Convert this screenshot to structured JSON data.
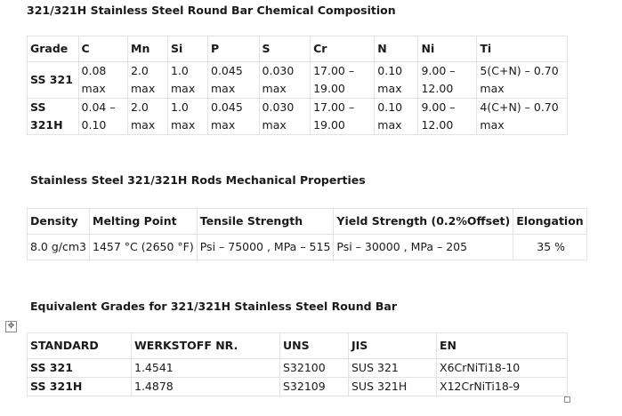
{
  "chemical": {
    "title": "321/321H Stainless Steel Round Bar Chemical Composition",
    "headers": [
      "Grade",
      "C",
      "Mn",
      "Si",
      "P",
      "S",
      "Cr",
      "N",
      "Ni",
      "Ti"
    ],
    "rows": [
      [
        "SS 321",
        "0.08 max",
        "2.0 max",
        "1.0 max",
        "0.045 max",
        "0.030 max",
        "17.00 – 19.00",
        "0.10 max",
        "9.00 – 12.00",
        "5(C+N) – 0.70 max"
      ],
      [
        "SS 321H",
        "0.04 – 0.10",
        "2.0 max",
        "1.0 max",
        "0.045 max",
        "0.030 max",
        "17.00 – 19.00",
        "0.10 max",
        "9.00 – 12.00",
        "4(C+N) – 0.70 max"
      ]
    ]
  },
  "mechanical": {
    "title": "Stainless Steel 321/321H Rods Mechanical Properties",
    "headers": [
      "Density",
      "Melting Point",
      "Tensile Strength",
      "Yield Strength (0.2%Offset)",
      "Elongation"
    ],
    "row": [
      "8.0 g/cm3",
      "1457 °C (2650 °F)",
      "Psi – 75000 , MPa – 515",
      "Psi – 30000 , MPa – 205",
      "35 %"
    ]
  },
  "equivalent": {
    "title": "Equivalent Grades for 321/321H Stainless Steel Round Bar",
    "headers": [
      "STANDARD",
      "WERKSTOFF NR.",
      "UNS",
      "JIS",
      "EN"
    ],
    "rows": [
      [
        "SS 321",
        "1.4541",
        "S32100",
        "SUS 321",
        "X6CrNiTi18-10"
      ],
      [
        "SS 321H",
        "1.4878",
        "S32109",
        "SUS 321H",
        "X12CrNiTi18-9"
      ]
    ]
  },
  "icons": {
    "table_anchor": "move-handle-icon",
    "table_resize": "resize-handle-icon"
  }
}
